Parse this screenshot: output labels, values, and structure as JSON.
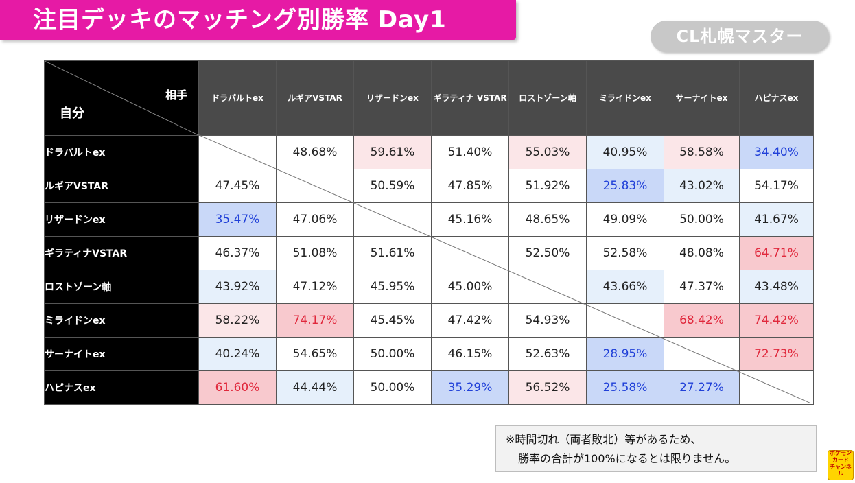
{
  "title": "注目デッキのマッチング別勝率 Day1",
  "badge": "CL札幌マスター",
  "corner": {
    "opponent_label": "相手",
    "self_label": "自分"
  },
  "columns": [
    "ドラパルトex",
    "ルギアVSTAR",
    "リザードンex",
    "ギラティナ VSTAR",
    "ロストゾーン軸",
    "ミライドンex",
    "サーナイトex",
    "ハピナスex"
  ],
  "rows": [
    {
      "label": "ドラパルトex",
      "cells": [
        "",
        "48.68%",
        "59.61%",
        "51.40%",
        "55.03%",
        "40.95%",
        "58.58%",
        "34.40%"
      ]
    },
    {
      "label": "ルギアVSTAR",
      "cells": [
        "47.45%",
        "",
        "50.59%",
        "47.85%",
        "51.92%",
        "25.83%",
        "43.02%",
        "54.17%"
      ]
    },
    {
      "label": "リザードンex",
      "cells": [
        "35.47%",
        "47.06%",
        "",
        "45.16%",
        "48.65%",
        "49.09%",
        "50.00%",
        "41.67%"
      ]
    },
    {
      "label": "ギラティナVSTAR",
      "cells": [
        "46.37%",
        "51.08%",
        "51.61%",
        "",
        "52.50%",
        "52.58%",
        "48.08%",
        "64.71%"
      ]
    },
    {
      "label": "ロストゾーン軸",
      "cells": [
        "43.92%",
        "47.12%",
        "45.95%",
        "45.00%",
        "",
        "43.66%",
        "47.37%",
        "43.48%"
      ]
    },
    {
      "label": "ミライドンex",
      "cells": [
        "58.22%",
        "74.17%",
        "45.45%",
        "47.42%",
        "54.93%",
        "",
        "68.42%",
        "74.42%"
      ]
    },
    {
      "label": "サーナイトex",
      "cells": [
        "40.24%",
        "54.65%",
        "50.00%",
        "46.15%",
        "52.63%",
        "28.95%",
        "",
        "72.73%"
      ]
    },
    {
      "label": "ハピナスex",
      "cells": [
        "61.60%",
        "44.44%",
        "50.00%",
        "35.29%",
        "56.52%",
        "25.58%",
        "27.27%",
        ""
      ]
    }
  ],
  "note": {
    "line1": "※時間切れ（両者敗北）等があるため、",
    "line2": "勝率の合計が100%になるとは限りません。"
  },
  "logo_text": [
    "ポケモン",
    "カード",
    "チャンネル"
  ],
  "colors": {
    "title_bg": "#e61aa5",
    "high_win_bg": "#f8c9ce",
    "high_win_text": "#e0283c",
    "low_win_bg": "#c9d8f8",
    "low_win_text": "#2040d8"
  }
}
